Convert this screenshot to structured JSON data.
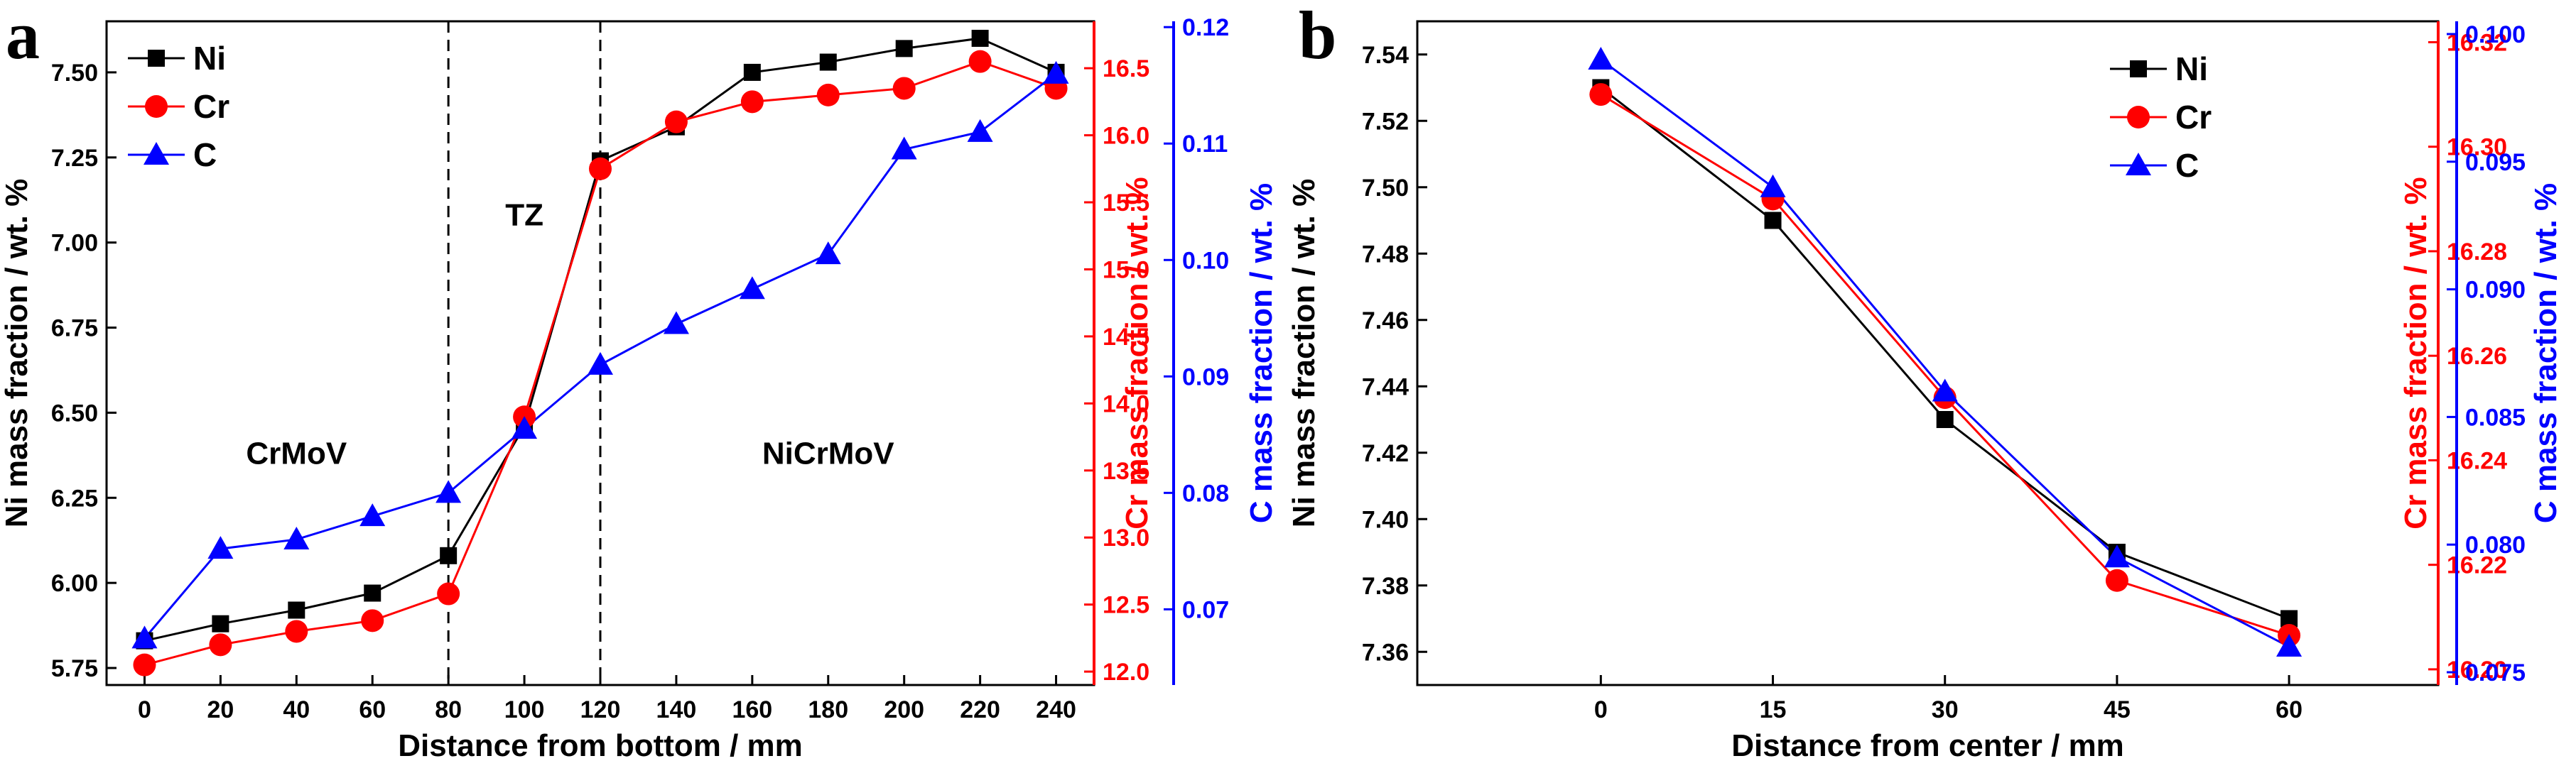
{
  "colors": {
    "ni": "#000000",
    "cr": "#ff0000",
    "c": "#0000ff"
  },
  "chart_data": [
    {
      "panel": "a",
      "type": "line",
      "xlabel": "Distance from bottom / mm",
      "x": [
        0,
        20,
        40,
        60,
        80,
        100,
        120,
        140,
        160,
        180,
        200,
        220,
        240
      ],
      "x_ticks": [
        "0",
        "20",
        "40",
        "60",
        "80",
        "100",
        "120",
        "140",
        "160",
        "180",
        "200",
        "220",
        "240"
      ],
      "xlim": [
        -10,
        250
      ],
      "series": [
        {
          "name": "Ni",
          "axis": "left",
          "marker": "square",
          "values": [
            5.83,
            5.88,
            5.92,
            5.97,
            6.08,
            6.46,
            7.24,
            7.34,
            7.5,
            7.53,
            7.57,
            7.6,
            7.5
          ]
        },
        {
          "name": "Cr",
          "axis": "right1",
          "marker": "circle",
          "values": [
            12.05,
            12.2,
            12.3,
            12.38,
            12.58,
            13.9,
            15.75,
            16.1,
            16.25,
            16.3,
            16.35,
            16.55,
            16.35
          ]
        },
        {
          "name": "C",
          "axis": "right2",
          "marker": "triangle",
          "values": [
            0.0675,
            0.0752,
            0.076,
            0.078,
            0.08,
            0.0855,
            0.091,
            0.0945,
            0.0975,
            0.1005,
            0.1095,
            0.111,
            0.116
          ]
        }
      ],
      "y_axes": [
        {
          "id": "left",
          "label": "Ni mass fraction / wt. %",
          "ylim": [
            5.7,
            7.65
          ],
          "ticks": [
            "5.75",
            "6.00",
            "6.25",
            "6.50",
            "6.75",
            "7.00",
            "7.25",
            "7.50"
          ],
          "tick_values": [
            5.75,
            6.0,
            6.25,
            6.5,
            6.75,
            7.0,
            7.25,
            7.5
          ]
        },
        {
          "id": "right1",
          "label": "Cr mass fraction / wt. %",
          "ylim": [
            11.9,
            16.85
          ],
          "ticks": [
            "12.0",
            "12.5",
            "13.0",
            "13.5",
            "14.0",
            "14.5",
            "15.0",
            "15.5",
            "16.0",
            "16.5"
          ],
          "tick_values": [
            12.0,
            12.5,
            13.0,
            13.5,
            14.0,
            14.5,
            15.0,
            15.5,
            16.0,
            16.5
          ]
        },
        {
          "id": "right2",
          "label": "C mass fraction / wt. %",
          "ylim": [
            0.0635,
            0.1205
          ],
          "ticks": [
            "0.07",
            "0.08",
            "0.09",
            "0.10",
            "0.11",
            "0.12"
          ],
          "tick_values": [
            0.07,
            0.08,
            0.09,
            0.1,
            0.11,
            0.12
          ]
        }
      ],
      "vlines": [
        80,
        120
      ],
      "annotations": [
        {
          "text": "CrMoV",
          "x": 40,
          "y": 6.35
        },
        {
          "text": "TZ",
          "x": 100,
          "y": 7.05
        },
        {
          "text": "NiCrMoV",
          "x": 180,
          "y": 6.35
        }
      ],
      "legend": [
        "Ni",
        "Cr",
        "C"
      ],
      "legend_position": "top-left"
    },
    {
      "panel": "b",
      "type": "line",
      "xlabel": "Distance from center / mm",
      "x": [
        0,
        15,
        30,
        45,
        60
      ],
      "x_ticks": [
        "0",
        "15",
        "30",
        "45",
        "60"
      ],
      "xlim": [
        -16,
        73
      ],
      "series": [
        {
          "name": "Ni",
          "axis": "left",
          "marker": "square",
          "values": [
            7.53,
            7.49,
            7.43,
            7.39,
            7.37
          ]
        },
        {
          "name": "Cr",
          "axis": "right1",
          "marker": "circle",
          "values": [
            16.31,
            16.29,
            16.252,
            16.217,
            16.2065
          ]
        },
        {
          "name": "C",
          "axis": "right2",
          "marker": "triangle",
          "values": [
            0.099,
            0.094,
            0.086,
            0.0795,
            0.076
          ]
        }
      ],
      "y_axes": [
        {
          "id": "left",
          "label": "Ni mass fraction / wt. %",
          "ylim": [
            7.35,
            7.55
          ],
          "ticks": [
            "7.36",
            "7.38",
            "7.40",
            "7.42",
            "7.44",
            "7.46",
            "7.48",
            "7.50",
            "7.52",
            "7.54"
          ],
          "tick_values": [
            7.36,
            7.38,
            7.4,
            7.42,
            7.44,
            7.46,
            7.48,
            7.5,
            7.52,
            7.54
          ]
        },
        {
          "id": "right1",
          "label": "Cr mass fraction / wt. %",
          "ylim": [
            16.197,
            16.324
          ],
          "ticks": [
            "16.20",
            "16.22",
            "16.24",
            "16.26",
            "16.28",
            "16.30",
            "16.32"
          ],
          "tick_values": [
            16.2,
            16.22,
            16.24,
            16.26,
            16.28,
            16.3,
            16.32
          ]
        },
        {
          "id": "right2",
          "label": "C mass fraction / wt. %",
          "ylim": [
            0.0745,
            0.1005
          ],
          "ticks": [
            "0.075",
            "0.080",
            "0.085",
            "0.090",
            "0.095",
            "0.100"
          ],
          "tick_values": [
            0.075,
            0.08,
            0.085,
            0.09,
            0.095,
            0.1
          ]
        }
      ],
      "vlines": [],
      "annotations": [],
      "legend": [
        "Ni",
        "Cr",
        "C"
      ],
      "legend_position": "top-right"
    }
  ]
}
